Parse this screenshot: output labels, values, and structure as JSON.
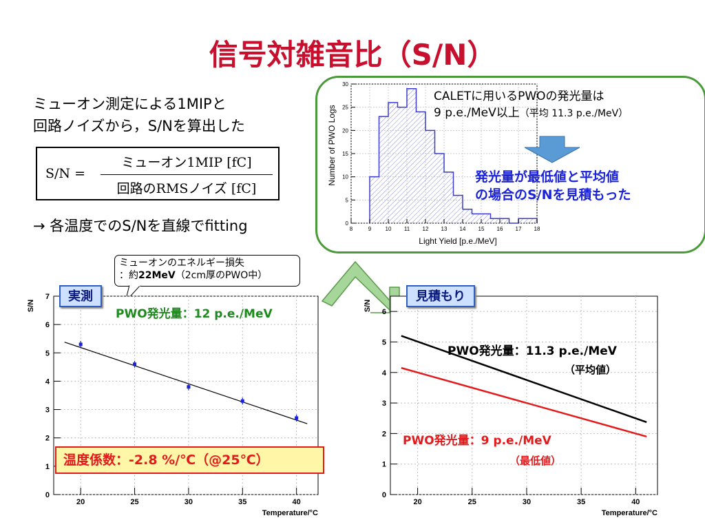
{
  "title": "信号対雑音比（S/N）",
  "left_text": {
    "line1": "ミューオン測定による1MIPと",
    "line2": "回路ノイズから，S/Nを算出した",
    "formula_lhs": "S/N =",
    "formula_num": "ミューオン1MIP [fC]",
    "formula_den": "回路のRMSノイズ [fC]",
    "arrow_note": "→  各温度でのS/Nを直線でfitting"
  },
  "histogram_panel": {
    "note_line1": "CALETに用いるPWOの発光量は",
    "note_line2a": "9 p.e./MeV以上",
    "note_line2b": "（平均 11.3 p.e./MeV）",
    "blue_line1": "発光量が最低値と平均値",
    "blue_line2": "の場合のS/Nを見積もった",
    "colors": {
      "outline": "#4a9a3a",
      "arrow": "#5b9bd5",
      "accent": "#1a22d8"
    }
  },
  "callout": {
    "line1": "ミューオンのエネルギー損失",
    "line2_pre": "：約",
    "line2_bold": "22MeV",
    "line2_post": "（2cm厚のPWO中）"
  },
  "tags": {
    "measured": "実測",
    "estimated": "見積もり"
  },
  "left_annotations": {
    "pwo_green": "PWO発光量：12 p.e./MeV",
    "temp_coeff": "温度係数：-2.8 %/℃（@25℃）"
  },
  "right_annotations": {
    "avg_label": "PWO発光量：11.3 p.e./MeV",
    "avg_sub": "（平均値）",
    "min_label": "PWO発光量：9 p.e./MeV",
    "min_sub": "（最低値）"
  },
  "chart_data": [
    {
      "type": "bar",
      "xlabel": "Light Yield [p.e./MeV]",
      "ylabel": "Number of PWO Logs",
      "xlim": [
        8,
        18
      ],
      "ylim": [
        0,
        30
      ],
      "xticks": [
        "8",
        "9",
        "10",
        "11",
        "12",
        "13",
        "14",
        "15",
        "16",
        "17",
        "18"
      ],
      "yticks": [
        "0",
        "5",
        "10",
        "15",
        "20",
        "25",
        "30"
      ],
      "bin_edges": [
        9.0,
        9.5,
        10.0,
        10.5,
        11.0,
        11.5,
        12.0,
        12.5,
        13.0,
        13.5,
        14.0,
        14.5,
        15.0,
        15.5,
        16.0,
        16.5,
        17.0,
        17.5
      ],
      "counts": [
        10,
        23,
        26,
        25,
        29,
        24,
        20,
        15,
        11,
        6,
        3,
        2,
        2,
        1,
        1,
        0,
        1,
        1
      ],
      "histogram_color": "#3a3acc"
    },
    {
      "type": "scatter",
      "xlabel": "Temperature/°C",
      "ylabel": "S/N",
      "xlim": [
        17.5,
        42
      ],
      "ylim": [
        0,
        7
      ],
      "xticks": [
        "20",
        "25",
        "30",
        "35",
        "40"
      ],
      "yticks": [
        "0",
        "1",
        "2",
        "3",
        "4",
        "5",
        "6",
        "7"
      ],
      "x": [
        20,
        25,
        30,
        35,
        40
      ],
      "y": [
        5.3,
        4.6,
        3.8,
        3.3,
        2.7
      ],
      "fit_line": {
        "x": [
          18.5,
          41
        ],
        "y": [
          5.38,
          2.5
        ]
      },
      "point_color": "#1a22d8"
    },
    {
      "type": "line",
      "xlabel": "Temperature/°C",
      "ylabel": "S/N",
      "xlim": [
        17.5,
        42
      ],
      "ylim": [
        0,
        6.5
      ],
      "xticks": [
        "20",
        "25",
        "30",
        "35",
        "40"
      ],
      "yticks": [
        "0",
        "1",
        "2",
        "3",
        "4",
        "5",
        "6"
      ],
      "series": [
        {
          "x": [
            18.5,
            41
          ],
          "y": [
            5.2,
            2.37
          ],
          "color": "#000000"
        },
        {
          "x": [
            18.5,
            41
          ],
          "y": [
            4.15,
            1.9
          ],
          "color": "#e31a1c"
        }
      ]
    }
  ]
}
